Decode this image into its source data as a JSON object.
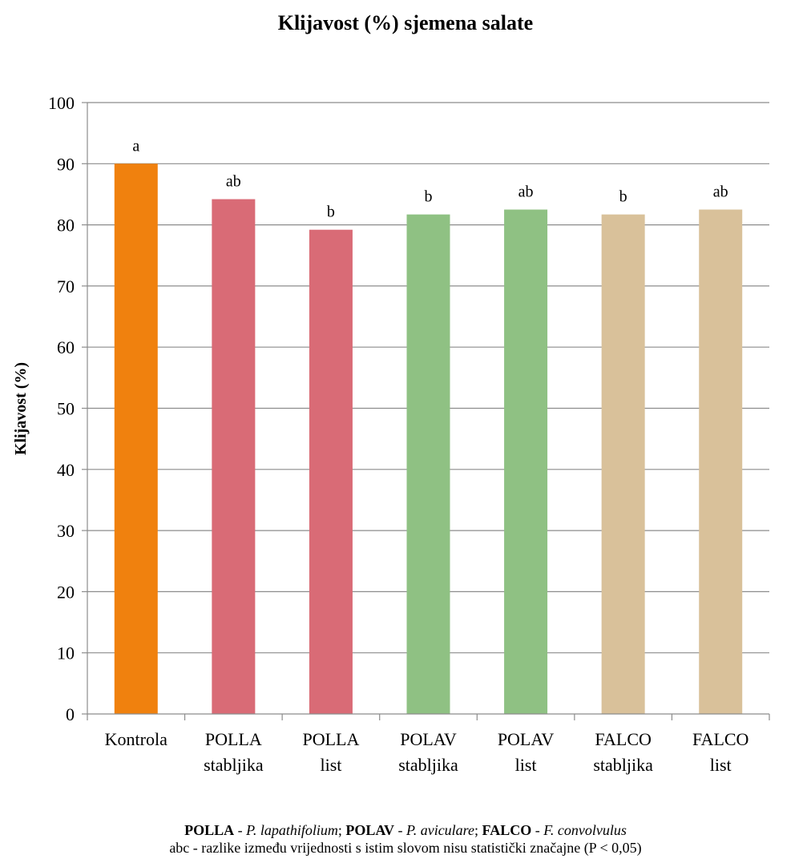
{
  "chart_data": {
    "type": "bar",
    "title": "Klijavost (%) sjemena salate",
    "ylabel": "Klijavost (%)",
    "xlabel": "",
    "ylim": [
      0,
      100
    ],
    "yticks": [
      0,
      10,
      20,
      30,
      40,
      50,
      60,
      70,
      80,
      90,
      100
    ],
    "grid": "horizontal",
    "categories": [
      [
        "Kontrola"
      ],
      [
        "POLLA",
        "stabljika"
      ],
      [
        "POLLA",
        "list"
      ],
      [
        "POLAV",
        "stabljika"
      ],
      [
        "POLAV",
        "list"
      ],
      [
        "FALCO",
        "stabljika"
      ],
      [
        "FALCO",
        "list"
      ]
    ],
    "values": [
      90,
      84.2,
      79.2,
      81.7,
      82.5,
      81.7,
      82.5
    ],
    "significance_labels": [
      "a",
      "ab",
      "b",
      "b",
      "ab",
      "b",
      "ab"
    ],
    "colors": [
      "#f0810e",
      "#d96b76",
      "#d96b76",
      "#8fc183",
      "#8fc183",
      "#d9c19a",
      "#d9c19a"
    ]
  },
  "footnote": {
    "line1": [
      {
        "text": "POLLA",
        "style": "bold"
      },
      {
        "text": " - ",
        "style": "normal"
      },
      {
        "text": "P. lapathifolium",
        "style": "italic"
      },
      {
        "text": "; ",
        "style": "normal"
      },
      {
        "text": "POLAV",
        "style": "bold"
      },
      {
        "text": " - ",
        "style": "normal"
      },
      {
        "text": "P. aviculare",
        "style": "italic"
      },
      {
        "text": "; ",
        "style": "normal"
      },
      {
        "text": "FALCO",
        "style": "bold"
      },
      {
        "text": " - ",
        "style": "normal"
      },
      {
        "text": "F. convolvulus",
        "style": "italic"
      }
    ],
    "line2": "abc - razlike između vrijednosti s istim slovom nisu statistički značajne (P < 0,05)"
  }
}
